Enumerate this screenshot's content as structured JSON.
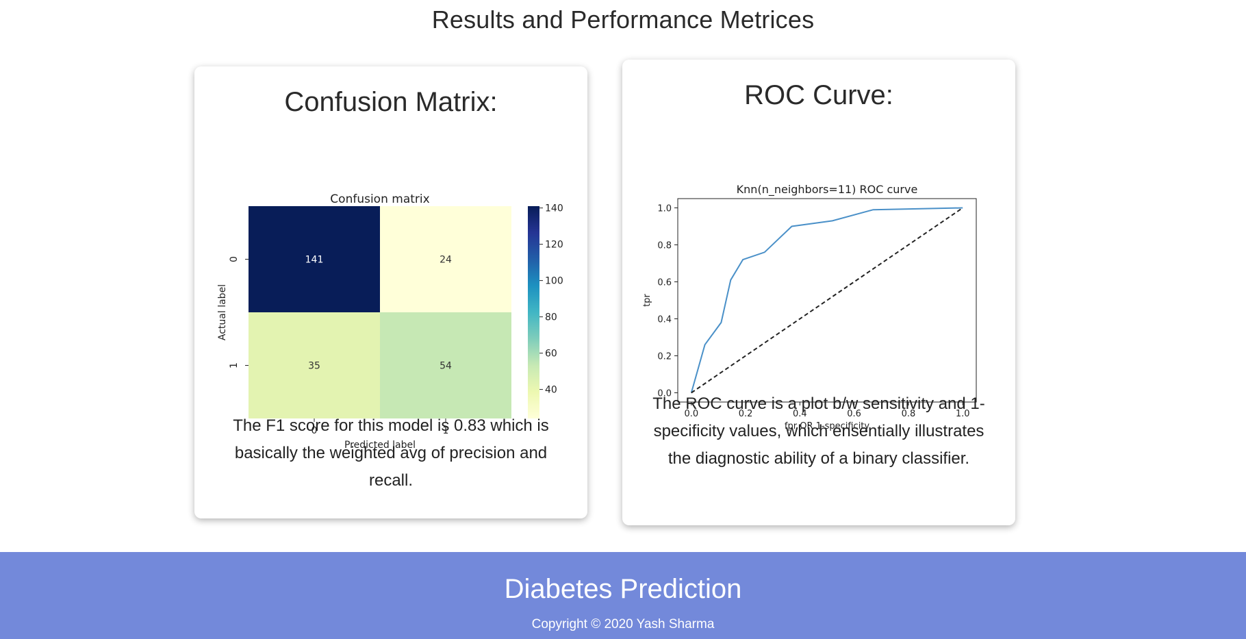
{
  "page": {
    "title": "Results and Performance Metrices"
  },
  "confusion_card": {
    "title": "Confusion Matrix:",
    "description": "The F1 score for this model is 0.83 which is basically the weighted avg of precision and recall."
  },
  "roc_card": {
    "title": "ROC Curve:",
    "description": "The ROC curve is a plot b/w sensitivity and 1-specificity values, which ensentially illustrates the diagnostic ability of a binary classifier."
  },
  "footer": {
    "title": "Diabetes Prediction",
    "copyright": "Copyright © 2020 Yash Sharma",
    "background": "#7389da"
  },
  "chart_data": [
    {
      "type": "heatmap",
      "title": "Confusion matrix",
      "xlabel": "Predicted label",
      "ylabel": "Actual label",
      "x_categories": [
        "0",
        "1"
      ],
      "y_categories": [
        "0",
        "1"
      ],
      "values": [
        [
          141,
          24
        ],
        [
          35,
          54
        ]
      ],
      "colormap": "YlGnBu",
      "colorbar_range": [
        24,
        141
      ],
      "colorbar_ticks": [
        40,
        60,
        80,
        100,
        120,
        140
      ],
      "cell_colors": [
        [
          "#081d58",
          "#ffffd9"
        ],
        [
          "#e3f3b1",
          "#c6e8b4"
        ]
      ],
      "text_colors": [
        [
          "#ffffff",
          "#333333"
        ],
        [
          "#333333",
          "#333333"
        ]
      ]
    },
    {
      "type": "line",
      "title": "Knn(n_neighbors=11) ROC curve",
      "xlabel": "fpr OR 1-specificity",
      "ylabel": "tpr",
      "xlim": [
        -0.05,
        1.05
      ],
      "ylim": [
        -0.05,
        1.05
      ],
      "xticks": [
        "0.0",
        "0.2",
        "0.4",
        "0.6",
        "0.8",
        "1.0"
      ],
      "yticks": [
        "0.0",
        "0.2",
        "0.4",
        "0.6",
        "0.8",
        "1.0"
      ],
      "series": [
        {
          "color": "#4a90c8",
          "style": "solid",
          "x": [
            0.0,
            0.05,
            0.11,
            0.145,
            0.19,
            0.27,
            0.37,
            0.52,
            0.67,
            1.0
          ],
          "y": [
            0.0,
            0.26,
            0.38,
            0.61,
            0.72,
            0.76,
            0.9,
            0.93,
            0.99,
            1.0
          ]
        },
        {
          "color": "#222222",
          "style": "dashed",
          "x": [
            0.0,
            1.0
          ],
          "y": [
            0.0,
            1.0
          ]
        }
      ]
    }
  ]
}
